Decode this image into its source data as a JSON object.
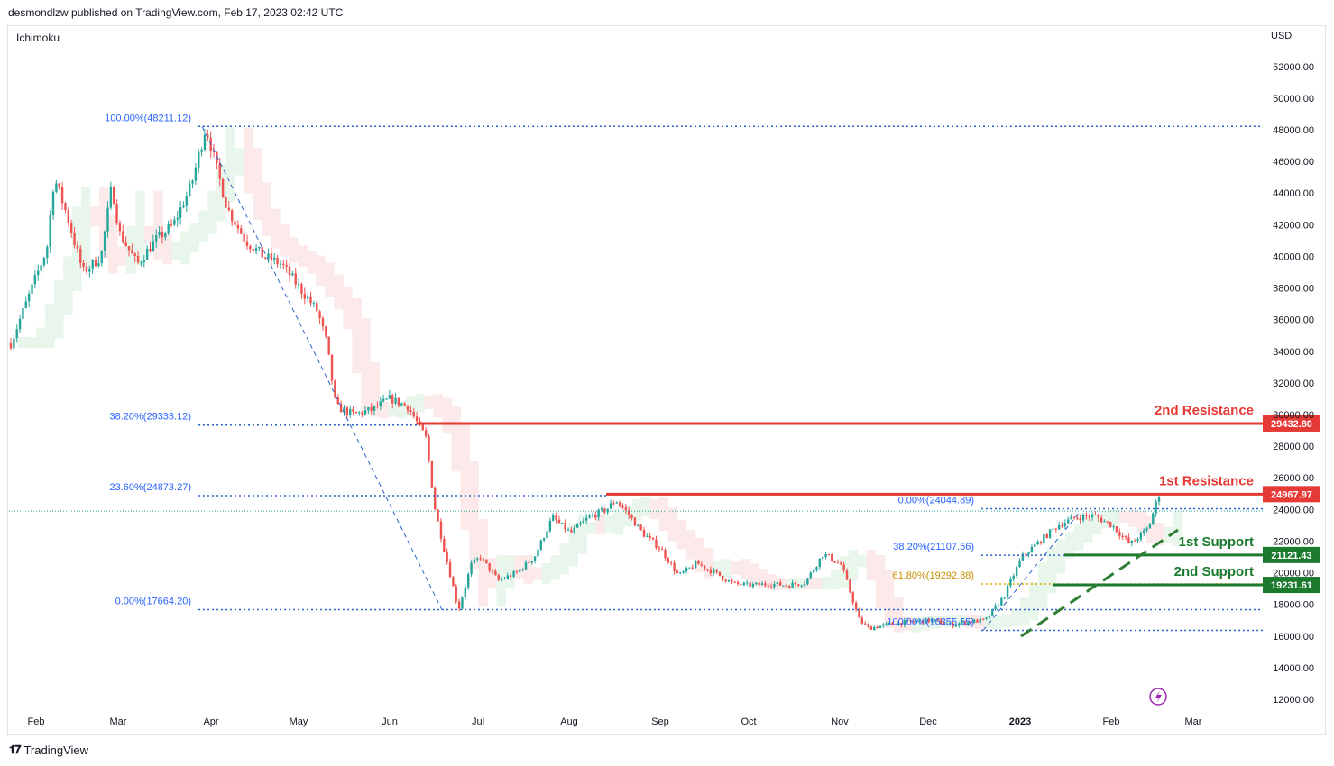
{
  "header": {
    "author_line": "desmondlzw published on TradingView.com, Feb 17, 2023 02:42 UTC"
  },
  "indicator": "Ichimoku",
  "currency": "USD",
  "footer": {
    "brand": "TradingView",
    "logo": "tradingview-logo"
  },
  "colors": {
    "up": "#26a69a",
    "down": "#ef5350",
    "resistance": "#e53935",
    "support": "#1b7a2e",
    "fib": "#2962ff",
    "fib_gold": "#e0a800",
    "cloud_red": "#fbe3e3",
    "cloud_green": "#e4f4e6"
  },
  "chart_data": {
    "type": "candlestick",
    "y_ticks": [
      "52000.00",
      "50000.00",
      "48000.00",
      "46000.00",
      "44000.00",
      "42000.00",
      "40000.00",
      "38000.00",
      "36000.00",
      "34000.00",
      "32000.00",
      "30000.00",
      "28000.00",
      "26000.00",
      "24000.00",
      "22000.00",
      "20000.00",
      "18000.00",
      "16000.00",
      "14000.00",
      "12000.00"
    ],
    "x_ticks": [
      "Feb",
      "Mar",
      "Apr",
      "May",
      "Jun",
      "Jul",
      "Aug",
      "Sep",
      "Oct",
      "Nov",
      "Dec",
      "2023",
      "Feb",
      "Mar"
    ],
    "ylim": [
      11000,
      53000
    ],
    "price_path": [
      [
        0,
        34500
      ],
      [
        1,
        37500
      ],
      [
        2,
        40500
      ],
      [
        2.4,
        45000
      ],
      [
        3,
        43000
      ],
      [
        4,
        39000
      ],
      [
        5,
        40000
      ],
      [
        5.6,
        44500
      ],
      [
        6,
        41500
      ],
      [
        7,
        39500
      ],
      [
        8,
        41000
      ],
      [
        9,
        42000
      ],
      [
        10,
        44500
      ],
      [
        10.8,
        48211
      ],
      [
        11.3,
        46000
      ],
      [
        12,
        43000
      ],
      [
        13,
        41000
      ],
      [
        14,
        40000
      ],
      [
        15,
        39500
      ],
      [
        16,
        38000
      ],
      [
        17,
        36500
      ],
      [
        17.5,
        34500
      ],
      [
        18,
        30500
      ],
      [
        19,
        30000
      ],
      [
        20,
        30300
      ],
      [
        21,
        31000
      ],
      [
        22,
        30500
      ],
      [
        23,
        28500
      ],
      [
        23.5,
        24000
      ],
      [
        24,
        21500
      ],
      [
        24.8,
        17664
      ],
      [
        25.5,
        20500
      ],
      [
        26,
        21000
      ],
      [
        27,
        19500
      ],
      [
        28,
        20000
      ],
      [
        29,
        21000
      ],
      [
        30,
        23500
      ],
      [
        31,
        22500
      ],
      [
        32,
        23500
      ],
      [
        33,
        24000
      ],
      [
        33.5,
        24600
      ],
      [
        34,
        24000
      ],
      [
        35,
        22500
      ],
      [
        36,
        21500
      ],
      [
        37,
        19800
      ],
      [
        38,
        20600
      ],
      [
        39,
        20000
      ],
      [
        40,
        19300
      ],
      [
        41,
        19200
      ],
      [
        42,
        19300
      ],
      [
        43,
        19200
      ],
      [
        44,
        19400
      ],
      [
        45,
        21200
      ],
      [
        46,
        20500
      ],
      [
        47,
        17000
      ],
      [
        47.5,
        16500
      ],
      [
        48,
        16600
      ],
      [
        49,
        16800
      ],
      [
        50,
        16900
      ],
      [
        51,
        17000
      ],
      [
        52,
        16700
      ],
      [
        53,
        16900
      ],
      [
        54,
        17000
      ],
      [
        55,
        18500
      ],
      [
        56,
        21000
      ],
      [
        57,
        22000
      ],
      [
        58,
        23000
      ],
      [
        59,
        23500
      ],
      [
        60,
        23600
      ],
      [
        61,
        23000
      ],
      [
        62,
        21800
      ],
      [
        63,
        22800
      ],
      [
        63.6,
        24968
      ]
    ],
    "fib_levels": [
      {
        "label": "100.00%(48211.12)",
        "price": 48211.12
      },
      {
        "label": "38.20%(29333.12)",
        "price": 29333.12
      },
      {
        "label": "23.60%(24873.27)",
        "price": 24873.27
      },
      {
        "label": "0.00%(17664.20)",
        "price": 17664.2
      },
      {
        "label": "0.00%(24044.89)",
        "price": 24044.89
      },
      {
        "label": "38.20%(21107.56)",
        "price": 21107.56
      },
      {
        "label": "61.80%(19292.88)",
        "price": 19292.88
      },
      {
        "label": "100.00%(16355.55)",
        "price": 16355.55
      }
    ],
    "levels": [
      {
        "name": "2nd Resistance",
        "value": "29432.80",
        "price": 29432.8,
        "kind": "resistance"
      },
      {
        "name": "1st Resistance",
        "value": "24967.97",
        "price": 24967.97,
        "kind": "resistance"
      },
      {
        "name": "1st Support",
        "value": "21121.43",
        "price": 21121.43,
        "kind": "support"
      },
      {
        "name": "2nd Support",
        "value": "19231.61",
        "price": 19231.61,
        "kind": "support"
      }
    ],
    "current_price": 23900
  }
}
